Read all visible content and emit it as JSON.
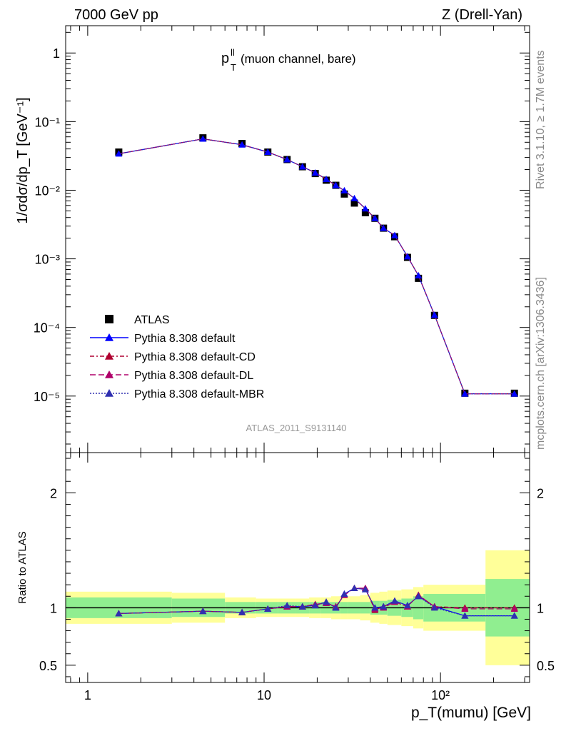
{
  "header": {
    "left": "7000 GeV pp",
    "right": "Z (Drell-Yan)"
  },
  "side": {
    "rivet": "Rivet 3.1.10, ≥ 1.7M events",
    "mcplots": "mcplots.cern.ch [arXiv:1306.3436]"
  },
  "plot_title": {
    "main": "p",
    "sup": "ll",
    "sub": "T",
    "rest": " (muon channel, bare)"
  },
  "watermark": "ATLAS_2011_S9131140",
  "axes": {
    "ylabel_top": "1/σdσ/dp_T [GeV⁻¹]",
    "ylabel_bottom": "Ratio to ATLAS",
    "xlabel": "p_T(mumu) [GeV]"
  },
  "legend": [
    {
      "label": "ATLAS",
      "color": "#000000",
      "marker": "square",
      "dash": ""
    },
    {
      "label": "Pythia 8.308 default",
      "color": "#0000ff",
      "marker": "triangle",
      "dash": ""
    },
    {
      "label": "Pythia 8.308 default-CD",
      "color": "#b00030",
      "marker": "triangle",
      "dash": "6,3,2,3"
    },
    {
      "label": "Pythia 8.308 default-DL",
      "color": "#b0006a",
      "marker": "triangle",
      "dash": "8,4"
    },
    {
      "label": "Pythia 8.308 default-MBR",
      "color": "#3030b0",
      "marker": "triangle",
      "dash": "2,2"
    }
  ],
  "chart_data": {
    "type": "line",
    "xscale": "log",
    "xlim": [
      0.75,
      320
    ],
    "top": {
      "yscale": "log",
      "ylim": [
        1.5e-06,
        2.5
      ],
      "y_ticks": [
        "1",
        "10⁻¹",
        "10⁻²",
        "10⁻³",
        "10⁻⁴",
        "10⁻⁵"
      ],
      "x": [
        1.5,
        4.5,
        7.5,
        10.5,
        13.5,
        16.5,
        19.5,
        22.5,
        25.5,
        28.5,
        32.5,
        37.5,
        42.5,
        47.5,
        55,
        65,
        75,
        92.5,
        137.5,
        262.5
      ],
      "series": [
        {
          "name": "ATLAS",
          "values": [
            0.036,
            0.058,
            0.048,
            0.036,
            0.028,
            0.022,
            0.0175,
            0.014,
            0.0118,
            0.0088,
            0.0065,
            0.0047,
            0.0039,
            0.0028,
            0.0021,
            0.00105,
            0.00052,
            0.00015,
            1.1e-05,
            1.1e-05
          ]
        },
        {
          "name": "Pythia 8.308 default",
          "values": [
            0.034,
            0.056,
            0.046,
            0.036,
            0.028,
            0.022,
            0.018,
            0.0145,
            0.0118,
            0.0099,
            0.0076,
            0.0054,
            0.0039,
            0.0028,
            0.0022,
            0.00108,
            0.00057,
            0.000152,
            1.08e-05,
            1.08e-05
          ]
        }
      ]
    },
    "ratio": {
      "ylim": [
        0.35,
        2.35
      ],
      "y_ticks": [
        0.5,
        1,
        2
      ],
      "x": [
        1.5,
        4.5,
        7.5,
        10.5,
        13.5,
        16.5,
        19.5,
        22.5,
        25.5,
        28.5,
        32.5,
        37.5,
        42.5,
        47.5,
        55,
        65,
        75,
        92.5,
        137.5,
        262.5
      ],
      "series": [
        {
          "name": "Pythia 8.308 default",
          "values": [
            0.95,
            0.97,
            0.96,
            0.99,
            1.01,
            1.01,
            1.02,
            1.05,
            1.0,
            1.12,
            1.17,
            1.16,
            1.0,
            1.01,
            1.06,
            1.02,
            1.1,
            1.01,
            0.93,
            0.93
          ]
        },
        {
          "name": "Pythia 8.308 default-CD",
          "values": [
            0.95,
            0.97,
            0.96,
            0.99,
            1.01,
            1.01,
            1.03,
            1.04,
            1.01,
            1.11,
            1.17,
            1.17,
            0.98,
            1.01,
            1.05,
            1.01,
            1.11,
            1.01,
            1.0,
            1.0
          ]
        },
        {
          "name": "Pythia 8.308 default-DL",
          "values": [
            0.95,
            0.97,
            0.96,
            0.99,
            1.01,
            1.01,
            1.03,
            1.04,
            1.01,
            1.11,
            1.17,
            1.17,
            0.99,
            1.0,
            1.05,
            1.01,
            1.11,
            1.01,
            0.99,
            0.99
          ]
        },
        {
          "name": "Pythia 8.308 default-MBR",
          "values": [
            0.95,
            0.97,
            0.96,
            0.99,
            1.02,
            1.01,
            1.02,
            1.05,
            1.0,
            1.12,
            1.17,
            1.16,
            1.0,
            1.01,
            1.06,
            1.02,
            1.1,
            1.0,
            0.93,
            0.93
          ]
        }
      ],
      "bands": {
        "edges": [
          0.75,
          3,
          6,
          9,
          12,
          15,
          18,
          21,
          24,
          27,
          30,
          35,
          40,
          45,
          50,
          60,
          70,
          80,
          180,
          320
        ],
        "green": [
          0.09,
          0.08,
          0.05,
          0.05,
          0.05,
          0.05,
          0.05,
          0.05,
          0.05,
          0.05,
          0.05,
          0.05,
          0.06,
          0.06,
          0.07,
          0.08,
          0.1,
          0.12,
          0.25
        ],
        "yellow": [
          0.14,
          0.13,
          0.09,
          0.08,
          0.08,
          0.08,
          0.09,
          0.09,
          0.1,
          0.1,
          0.1,
          0.11,
          0.13,
          0.14,
          0.15,
          0.16,
          0.18,
          0.2,
          0.5
        ]
      }
    },
    "x_ticks": [
      "1",
      "10",
      "10²"
    ]
  },
  "colors": {
    "green_band": "#90ee90",
    "yellow_band": "#ffff99",
    "gray_text": "#888888"
  }
}
